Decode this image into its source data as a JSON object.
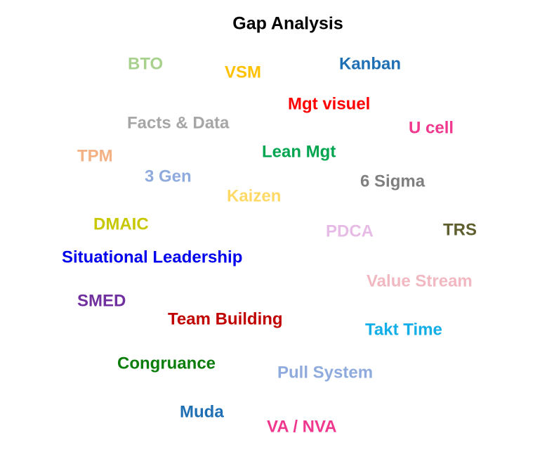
{
  "title": "Gap Analysis",
  "words": [
    {
      "text": "BTO",
      "color": "#a9d18e"
    },
    {
      "text": "VSM",
      "color": "#ffc000"
    },
    {
      "text": "Kanban",
      "color": "#1f6fb5"
    },
    {
      "text": "Mgt visuel",
      "color": "#ff0000"
    },
    {
      "text": "Facts & Data",
      "color": "#a6a6a6"
    },
    {
      "text": "U cell",
      "color": "#f0388f"
    },
    {
      "text": "TPM",
      "color": "#f4b183"
    },
    {
      "text": "Lean Mgt",
      "color": "#00a550"
    },
    {
      "text": "3 Gen",
      "color": "#8faadc"
    },
    {
      "text": "6 Sigma",
      "color": "#7f7f7f"
    },
    {
      "text": "Kaizen",
      "color": "#ffd966"
    },
    {
      "text": "DMAIC",
      "color": "#c8c800"
    },
    {
      "text": "PDCA",
      "color": "#e6bce6"
    },
    {
      "text": "TRS",
      "color": "#5e5e2e"
    },
    {
      "text": "Situational Leadership",
      "color": "#0000ee"
    },
    {
      "text": "Value Stream",
      "color": "#f2b8c2"
    },
    {
      "text": "SMED",
      "color": "#7030a0"
    },
    {
      "text": "Team Building",
      "color": "#c00000"
    },
    {
      "text": "Takt Time",
      "color": "#12aee8"
    },
    {
      "text": "Congruance",
      "color": "#0a7d0a"
    },
    {
      "text": "Pull System",
      "color": "#8faadc"
    },
    {
      "text": "Muda",
      "color": "#1f6fb5"
    },
    {
      "text": "VA / NVA",
      "color": "#f0388f"
    }
  ]
}
